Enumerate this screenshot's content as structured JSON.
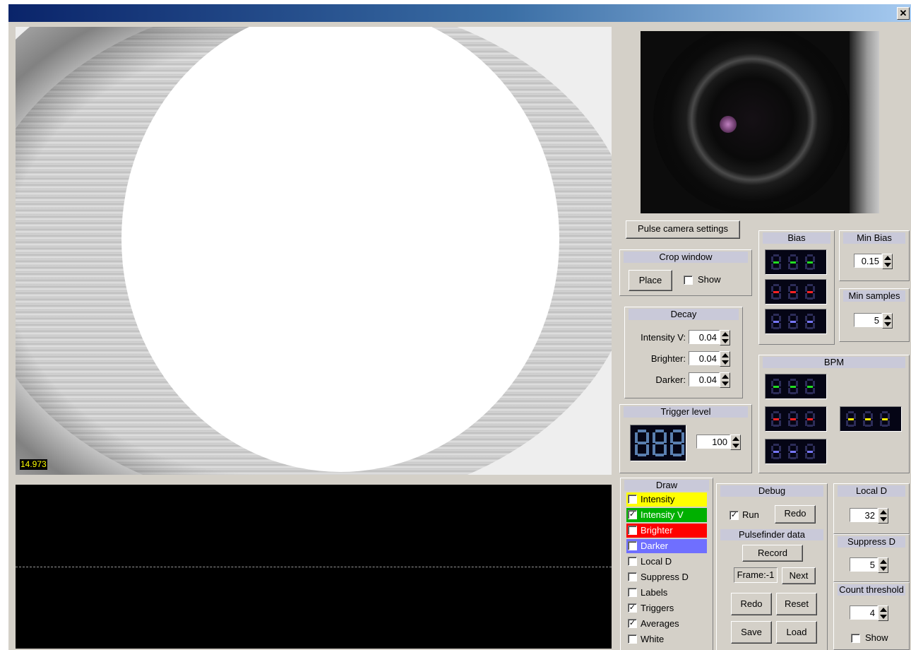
{
  "window": {
    "close_glyph": "✕"
  },
  "main_view": {
    "fps": "14.973"
  },
  "buttons": {
    "pulse_camera_settings": "Pulse camera settings"
  },
  "crop_window": {
    "title": "Crop window",
    "place": "Place",
    "show": "Show",
    "show_checked": false
  },
  "decay": {
    "title": "Decay",
    "rows": [
      {
        "label": "Intensity V:",
        "value": "0.04"
      },
      {
        "label": "Brighter:",
        "value": "0.04"
      },
      {
        "label": "Darker:",
        "value": "0.04"
      }
    ]
  },
  "trigger_level": {
    "title": "Trigger level",
    "value": "100"
  },
  "bias": {
    "title": "Bias",
    "colors": [
      "#22dd22",
      "#ff2222",
      "#7777ff"
    ]
  },
  "min_bias": {
    "title": "Min Bias",
    "value": "0.15"
  },
  "min_samples": {
    "title": "Min samples",
    "value": "5"
  },
  "bpm": {
    "title": "BPM",
    "colors": [
      "#22dd22",
      "#ff2222",
      "#7777ff",
      "#ffee00"
    ]
  },
  "draw": {
    "title": "Draw",
    "items": [
      {
        "label": "Intensity",
        "checked": false,
        "bg": "#ffff00",
        "fg": "#000000"
      },
      {
        "label": "Intensity V",
        "checked": true,
        "bg": "#00b000",
        "fg": "#ffffff"
      },
      {
        "label": "Brighter",
        "checked": false,
        "bg": "#ff0000",
        "fg": "#ffffff"
      },
      {
        "label": "Darker",
        "checked": false,
        "bg": "#6f6fff",
        "fg": "#ffffff"
      },
      {
        "label": "Local D",
        "checked": false,
        "bg": "",
        "fg": "#000000"
      },
      {
        "label": "Suppress D",
        "checked": false,
        "bg": "",
        "fg": "#000000"
      },
      {
        "label": "Labels",
        "checked": false,
        "bg": "",
        "fg": "#000000"
      },
      {
        "label": "Triggers",
        "checked": true,
        "bg": "",
        "fg": "#000000"
      },
      {
        "label": "Averages",
        "checked": true,
        "bg": "",
        "fg": "#000000"
      },
      {
        "label": "White",
        "checked": false,
        "bg": "",
        "fg": "#000000"
      }
    ]
  },
  "debug": {
    "title": "Debug",
    "run": "Run",
    "run_checked": true,
    "redo": "Redo",
    "pulsefinder_title": "Pulsefinder data",
    "record": "Record",
    "frame": "Frame:-1",
    "next": "Next",
    "redo2": "Redo",
    "reset": "Reset",
    "save": "Save",
    "load": "Load"
  },
  "local_d": {
    "title": "Local D",
    "value": "32"
  },
  "suppress_d": {
    "title": "Suppress D",
    "value": "5"
  },
  "count_threshold": {
    "title": "Count threshold",
    "value": "4",
    "show": "Show",
    "show_checked": false
  },
  "check_glyph": "✓"
}
